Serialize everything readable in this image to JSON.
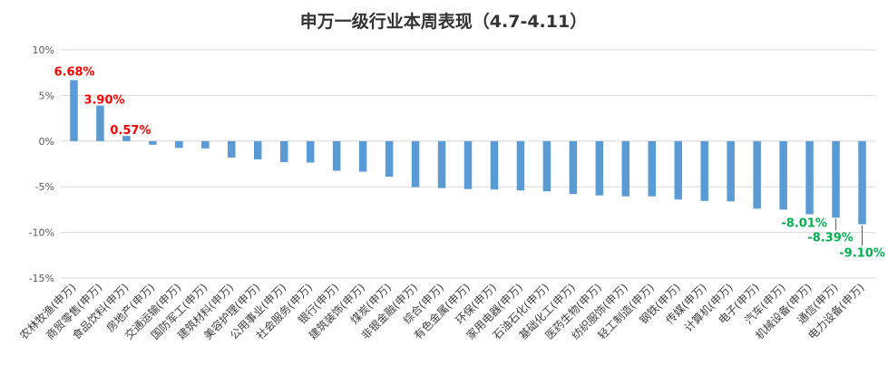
{
  "chart_data": {
    "type": "bar",
    "title": "申万一级行业本周表现（4.7-4.11）",
    "xlabel": "",
    "ylabel": "",
    "ylim": [
      -15,
      10
    ],
    "yticks": [
      10,
      5,
      0,
      -5,
      -10,
      -15
    ],
    "ytick_labels": [
      "10%",
      "5%",
      "0%",
      "-5%",
      "-10%",
      "-15%"
    ],
    "grid": true,
    "legend": "none",
    "bar_color": "#5b9bd5",
    "positive_label_color": "#ff0000",
    "negative_label_color": "#00b050",
    "categories": [
      "农林牧渔(申万)",
      "商贸零售(申万)",
      "食品饮料(申万)",
      "房地产(申万)",
      "交通运输(申万)",
      "国防军工(申万)",
      "建筑材料(申万)",
      "美容护理(申万)",
      "公用事业(申万)",
      "社会服务(申万)",
      "银行(申万)",
      "建筑装饰(申万)",
      "煤炭(申万)",
      "非银金融(申万)",
      "综合(申万)",
      "有色金属(申万)",
      "环保(申万)",
      "家用电器(申万)",
      "石油石化(申万)",
      "基础化工(申万)",
      "医药生物(申万)",
      "纺织服饰(申万)",
      "轻工制造(申万)",
      "钢铁(申万)",
      "传媒(申万)",
      "计算机(申万)",
      "电子(申万)",
      "汽车(申万)",
      "机械设备(申万)",
      "通信(申万)",
      "电力设备(申万)"
    ],
    "values": [
      6.68,
      3.9,
      0.57,
      -0.4,
      -0.75,
      -0.8,
      -1.8,
      -2.0,
      -2.3,
      -2.35,
      -3.25,
      -3.35,
      -3.9,
      -5.05,
      -5.15,
      -5.25,
      -5.3,
      -5.4,
      -5.5,
      -5.8,
      -5.95,
      -6.05,
      -6.05,
      -6.4,
      -6.55,
      -6.6,
      -7.4,
      -7.5,
      -8.01,
      -8.39,
      -9.1
    ],
    "data_labels": [
      {
        "index": 0,
        "text": "6.68%"
      },
      {
        "index": 1,
        "text": "3.90%"
      },
      {
        "index": 2,
        "text": "0.57%"
      },
      {
        "index": 28,
        "text": "-8.01%"
      },
      {
        "index": 29,
        "text": "-8.39%"
      },
      {
        "index": 30,
        "text": "-9.10%"
      }
    ]
  }
}
